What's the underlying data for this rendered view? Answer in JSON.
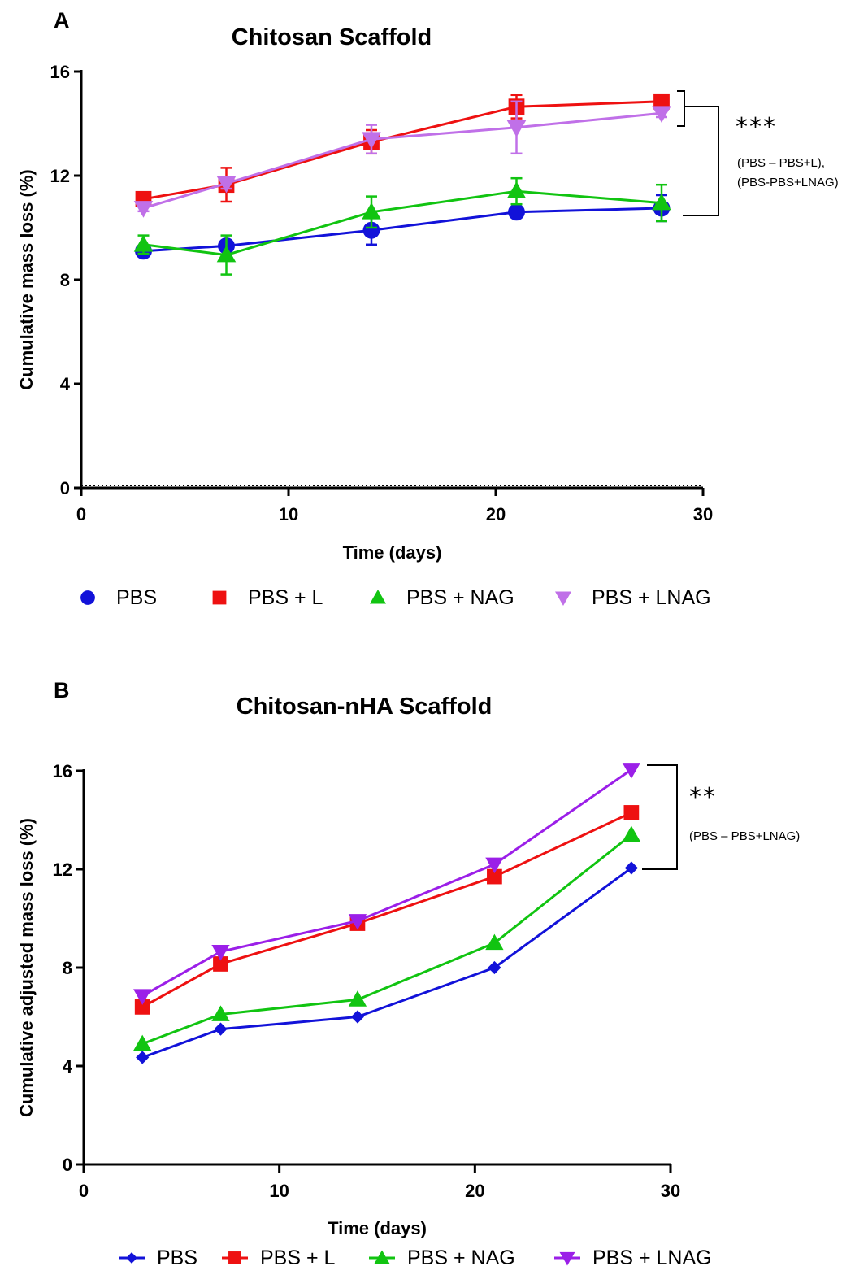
{
  "chart_data": [
    {
      "type": "line",
      "panel_label": "A",
      "title": "Chitosan Scaffold",
      "xlabel": "Time (days)",
      "ylabel": "Cumulative mass loss (%)",
      "xlim": [
        0,
        30
      ],
      "ylim": [
        0,
        16
      ],
      "xticks": [
        0,
        10,
        20,
        30
      ],
      "yticks": [
        0,
        4,
        8,
        12,
        16
      ],
      "x": [
        3,
        7,
        14,
        21,
        28
      ],
      "legend_position": "bottom",
      "series": [
        {
          "name": "PBS",
          "color": "#1212d9",
          "marker": "circle",
          "values": [
            9.1,
            9.3,
            9.9,
            10.6,
            10.75
          ],
          "errors": [
            0.12,
            0.2,
            0.55,
            0.15,
            0.5
          ]
        },
        {
          "name": "PBS + L",
          "color": "#ee1111",
          "marker": "square",
          "values": [
            11.1,
            11.65,
            13.3,
            14.65,
            14.85
          ],
          "errors": [
            0.15,
            0.65,
            0.45,
            0.45,
            0.12
          ]
        },
        {
          "name": "PBS + NAG",
          "color": "#11c411",
          "marker": "triangle-up",
          "values": [
            9.35,
            8.95,
            10.6,
            11.4,
            10.95
          ],
          "errors": [
            0.35,
            0.75,
            0.6,
            0.5,
            0.7
          ]
        },
        {
          "name": "PBS + LNAG",
          "color": "#c070e8",
          "marker": "triangle-down",
          "values": [
            10.75,
            11.7,
            13.4,
            13.85,
            14.4
          ],
          "errors": [
            0.12,
            0.2,
            0.55,
            1.0,
            0.15
          ]
        }
      ],
      "significance": {
        "stars": "***",
        "note_lines": [
          "(PBS – PBS+L),",
          "(PBS-PBS+LNAG)"
        ]
      }
    },
    {
      "type": "line",
      "panel_label": "B",
      "title": "Chitosan-nHA Scaffold",
      "xlabel": "Time (days)",
      "ylabel": "Cumulative adjusted mass loss (%)",
      "xlim": [
        0,
        30
      ],
      "ylim": [
        0,
        16
      ],
      "xticks": [
        0,
        10,
        20,
        30
      ],
      "yticks": [
        0,
        4,
        8,
        12,
        16
      ],
      "x": [
        3,
        7,
        14,
        21,
        28
      ],
      "legend_position": "bottom",
      "series": [
        {
          "name": "PBS",
          "color": "#1212d9",
          "marker": "diamond",
          "values": [
            4.35,
            5.5,
            6.0,
            8.0,
            12.05
          ]
        },
        {
          "name": "PBS + L",
          "color": "#ee1111",
          "marker": "square",
          "values": [
            6.4,
            8.15,
            9.8,
            11.7,
            14.3
          ]
        },
        {
          "name": "PBS + NAG",
          "color": "#11c411",
          "marker": "triangle-up",
          "values": [
            4.9,
            6.1,
            6.7,
            9.0,
            13.4
          ]
        },
        {
          "name": "PBS + LNAG",
          "color": "#9b1fe8",
          "marker": "triangle-down",
          "values": [
            6.85,
            8.65,
            9.9,
            12.2,
            16.05
          ]
        }
      ],
      "significance": {
        "stars": "**",
        "note_lines": [
          "(PBS – PBS+LNAG)"
        ]
      }
    }
  ]
}
